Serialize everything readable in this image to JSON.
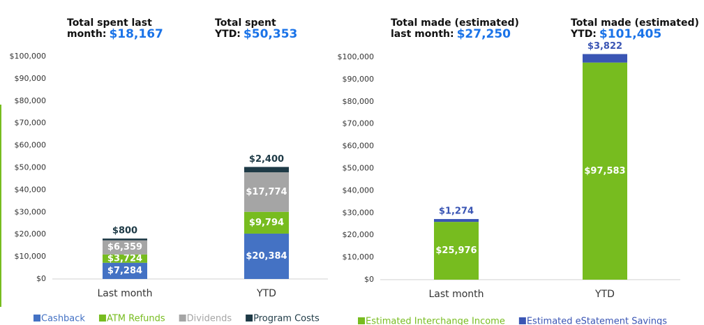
{
  "chart_data": [
    {
      "type": "stacked_bar",
      "annotations": [
        {
          "lines": [
            "Total spent last",
            "month:"
          ],
          "value_label": "$18,167"
        },
        {
          "lines": [
            "Total spent",
            "YTD:"
          ],
          "value_label": "$50,353"
        }
      ],
      "categories": [
        "Last month",
        "YTD"
      ],
      "series": [
        {
          "name": "Cashback",
          "color": "#4472c4",
          "values": [
            7284,
            20384
          ],
          "value_labels": [
            "$7,284",
            "$20,384"
          ],
          "label_position": "inside"
        },
        {
          "name": "ATM Refunds",
          "color": "#77bc1f",
          "values": [
            3724,
            9794
          ],
          "value_labels": [
            "$3,724",
            "$9,794"
          ],
          "label_position": "inside"
        },
        {
          "name": "Dividends",
          "color": "#a5a5a5",
          "values": [
            6359,
            17774
          ],
          "value_labels": [
            "$6,359",
            "$17,774"
          ],
          "label_position": "inside"
        },
        {
          "name": "Program Costs",
          "color": "#1e3a46",
          "values": [
            800,
            2400
          ],
          "value_labels": [
            "$800",
            "$2,400"
          ],
          "label_position": "above"
        }
      ],
      "ylim": [
        0,
        100000
      ],
      "yticks": [
        {
          "value": 0,
          "label": "$0"
        },
        {
          "value": 10000,
          "label": "$10,000"
        },
        {
          "value": 20000,
          "label": "$20,000"
        },
        {
          "value": 30000,
          "label": "$30,000"
        },
        {
          "value": 40000,
          "label": "$40,000"
        },
        {
          "value": 50000,
          "label": "$50,000"
        },
        {
          "value": 60000,
          "label": "$60,000"
        },
        {
          "value": 70000,
          "label": "$70,000"
        },
        {
          "value": 80000,
          "label": "$80,000"
        },
        {
          "value": 90000,
          "label": "$90,000"
        },
        {
          "value": 100000,
          "label": "$100,000"
        }
      ],
      "grid": false,
      "legend": "bottom"
    },
    {
      "type": "stacked_bar",
      "annotations": [
        {
          "lines": [
            "Total made (estimated)",
            "last month:"
          ],
          "value_label": "$27,250"
        },
        {
          "lines": [
            "Total made (estimated)",
            "YTD:"
          ],
          "value_label": "$101,405"
        }
      ],
      "categories": [
        "Last month",
        "YTD"
      ],
      "series": [
        {
          "name": "Estimated Interchange Income",
          "color": "#77bc1f",
          "values": [
            25976,
            97583
          ],
          "value_labels": [
            "$25,976",
            "$97,583"
          ],
          "label_position": "inside"
        },
        {
          "name": "Estimated eStatement Savings",
          "color": "#3a55b4",
          "values": [
            1274,
            3822
          ],
          "value_labels": [
            "$1,274",
            "$3,822"
          ],
          "label_position": "above"
        }
      ],
      "ylim": [
        0,
        100000
      ],
      "yticks": [
        {
          "value": 0,
          "label": "$0"
        },
        {
          "value": 10000,
          "label": "$10,000"
        },
        {
          "value": 20000,
          "label": "$20,000"
        },
        {
          "value": 30000,
          "label": "$30,000"
        },
        {
          "value": 40000,
          "label": "$40,000"
        },
        {
          "value": 50000,
          "label": "$50,000"
        },
        {
          "value": 60000,
          "label": "$60,000"
        },
        {
          "value": 70000,
          "label": "$70,000"
        },
        {
          "value": 80000,
          "label": "$80,000"
        },
        {
          "value": 90000,
          "label": "$90,000"
        },
        {
          "value": 100000,
          "label": "$100,000"
        }
      ],
      "grid": false,
      "legend": "bottom"
    }
  ]
}
